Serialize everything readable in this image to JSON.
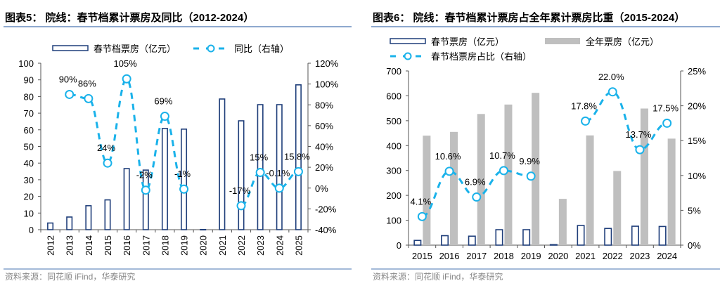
{
  "chart_data": [
    {
      "type": "bar+line",
      "title": "图表5：  院线：春节档累计票房及同比（2012-2024）",
      "source": "资料来源：同花顺 iFind，华泰研究",
      "categories": [
        "2012",
        "2013",
        "2014",
        "2015",
        "2016",
        "2017",
        "2018",
        "2019",
        "2020",
        "2021",
        "2022",
        "2023",
        "2024",
        "2025"
      ],
      "series": [
        {
          "name": "春节档票房（亿元）",
          "type": "bar",
          "axis": "left",
          "style": "outline",
          "color": "#1f3e7a",
          "values": [
            4.0,
            7.6,
            14.4,
            17.9,
            36.7,
            35.8,
            60.8,
            60.4,
            0.1,
            78.5,
            65.4,
            75.1,
            75.1,
            87.0
          ]
        },
        {
          "name": "同比（右轴）",
          "type": "line",
          "axis": "right",
          "style": "dashed-circle",
          "color": "#1ab2ea",
          "values": [
            null,
            90,
            86,
            24,
            105,
            -2,
            69,
            -1,
            null,
            null,
            -17,
            15,
            -0.1,
            15.8
          ],
          "labels": [
            "",
            "90%",
            "86%",
            "24%",
            "105%",
            "-2%",
            "69%",
            "-1%",
            "",
            "",
            "-17%",
            "15%",
            "-0.1%",
            "15.8%"
          ]
        }
      ],
      "yleft": {
        "lim": [
          0,
          100
        ],
        "ticks": [
          "0",
          "10",
          "20",
          "30",
          "40",
          "50",
          "60",
          "70",
          "80",
          "90",
          "100"
        ]
      },
      "yright": {
        "lim": [
          -40,
          120
        ],
        "ticks": [
          "-40%",
          "-20%",
          "0%",
          "20%",
          "40%",
          "60%",
          "80%",
          "100%",
          "120%"
        ]
      },
      "grid": false,
      "legend": "top"
    },
    {
      "type": "bar+line",
      "title": "图表6：  院线：春节档累计票房占全年累计票房比重（2015-2024）",
      "source": "资料来源：同花顺 iFind，华泰研究",
      "categories": [
        "2015",
        "2016",
        "2017",
        "2018",
        "2019",
        "2020",
        "2021",
        "2022",
        "2023",
        "2024"
      ],
      "series": [
        {
          "name": "春节票房（亿元）",
          "type": "bar",
          "axis": "left",
          "style": "outline",
          "color": "#1f3e7a",
          "values": [
            19,
            38,
            36,
            62,
            62,
            2,
            79,
            67,
            76,
            75
          ]
        },
        {
          "name": "全年票房（亿元）",
          "type": "bar",
          "axis": "left",
          "style": "fill",
          "color": "#bfbfbf",
          "values": [
            440,
            455,
            527,
            565,
            612,
            186,
            441,
            298,
            549,
            428
          ]
        },
        {
          "name": "春节档票房占比（右轴）",
          "type": "line",
          "axis": "right",
          "style": "dashed-circle",
          "color": "#1ab2ea",
          "values": [
            4.1,
            10.6,
            6.9,
            10.7,
            9.9,
            null,
            17.8,
            22.0,
            13.7,
            17.5
          ],
          "labels": [
            "4.1%",
            "10.6%",
            "6.9%",
            "10.7%",
            "9.9%",
            "",
            "17.8%",
            "22.0%",
            "13.7%",
            "17.5%"
          ]
        }
      ],
      "yleft": {
        "lim": [
          0,
          700
        ],
        "ticks": [
          "0",
          "100",
          "200",
          "300",
          "400",
          "500",
          "600",
          "700"
        ]
      },
      "yright": {
        "lim": [
          0,
          25
        ],
        "ticks": [
          "0%",
          "5%",
          "10%",
          "15%",
          "20%",
          "25%"
        ]
      },
      "grid": false,
      "legend": "top"
    }
  ]
}
